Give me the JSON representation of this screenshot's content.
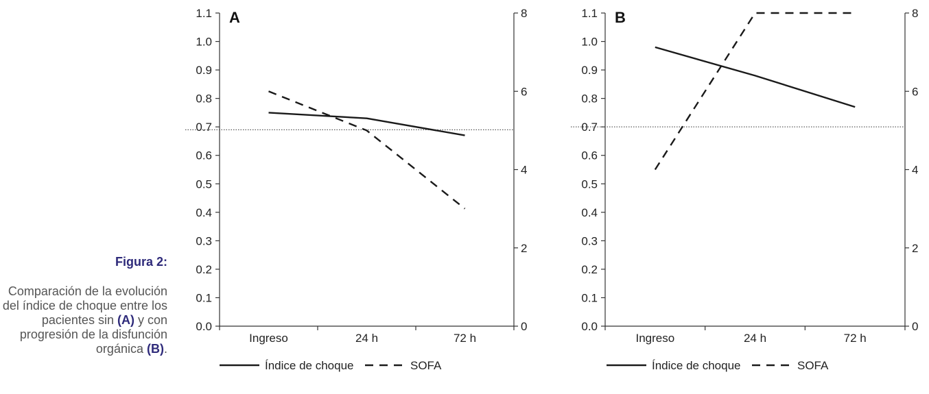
{
  "caption": {
    "label": "Figura 2:",
    "text_1": "Comparación de la evolución del índice de choque entre los pacientes sin ",
    "ref_a": "(A)",
    "text_2": " y con progresión de la disfunción orgánica ",
    "ref_b": "(B)",
    "text_3": "."
  },
  "colors": {
    "line": "#1a1a1a",
    "axis": "#333333",
    "threshold": "#333333",
    "caption_accent": "#2e2a7a",
    "caption_text": "#555555"
  },
  "chart_data": [
    {
      "type": "line",
      "panel_label": "A",
      "categories": [
        "Ingreso",
        "24 h",
        "72 h"
      ],
      "y_left": {
        "ylim": [
          0,
          1.1
        ],
        "ticks": [
          "0.0",
          "0.1",
          "0.2",
          "0.3",
          "0.4",
          "0.5",
          "0.6",
          "0.7",
          "0.8",
          "0.9",
          "1.0",
          "1.1"
        ]
      },
      "y_right": {
        "ylim": [
          0,
          8
        ],
        "ticks": [
          "0",
          "2",
          "4",
          "6",
          "8"
        ]
      },
      "series": [
        {
          "name": "Índice de choque",
          "axis": "left",
          "style": "solid",
          "values": [
            0.75,
            0.73,
            0.67
          ]
        },
        {
          "name": "SOFA",
          "axis": "right",
          "style": "dashed",
          "values": [
            6.0,
            5.0,
            3.0
          ]
        }
      ],
      "reference_line": {
        "axis": "left",
        "value": 0.69,
        "style": "dotted"
      },
      "legend": [
        "Índice de choque",
        "SOFA"
      ],
      "legend_position": "bottom",
      "grid": false
    },
    {
      "type": "line",
      "panel_label": "B",
      "categories": [
        "Ingreso",
        "24 h",
        "72 h"
      ],
      "y_left": {
        "ylim": [
          0,
          1.1
        ],
        "ticks": [
          "0.0",
          "0.1",
          "0.2",
          "0.3",
          "0.4",
          "0.5",
          "0.6",
          "0.7",
          "0.8",
          "0.9",
          "1.0",
          "1.1"
        ]
      },
      "y_right": {
        "ylim": [
          0,
          8
        ],
        "ticks": [
          "0",
          "2",
          "4",
          "6",
          "8"
        ]
      },
      "series": [
        {
          "name": "Índice de choque",
          "axis": "left",
          "style": "solid",
          "values": [
            0.98,
            0.88,
            0.77
          ]
        },
        {
          "name": "SOFA",
          "axis": "right",
          "style": "dashed",
          "values": [
            4.0,
            8.0,
            8.0
          ]
        }
      ],
      "reference_line": {
        "axis": "left",
        "value": 0.7,
        "style": "dotted"
      },
      "legend": [
        "Índice de choque",
        "SOFA"
      ],
      "legend_position": "bottom",
      "grid": false
    }
  ]
}
